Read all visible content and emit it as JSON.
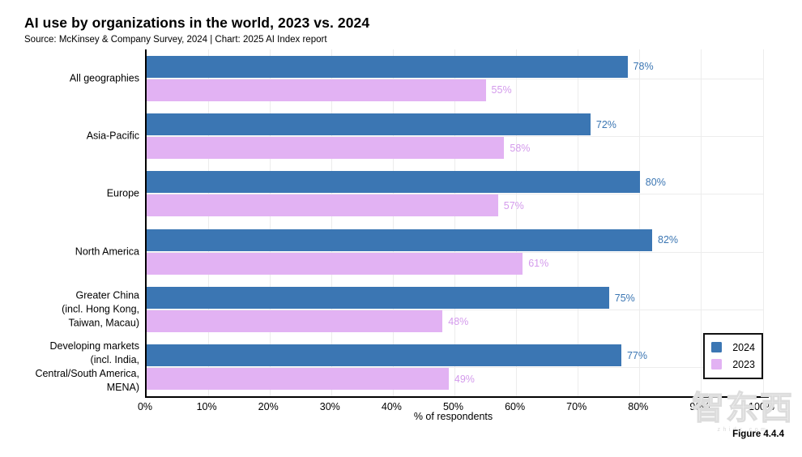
{
  "header": {
    "title": "AI use by organizations in the world, 2023 vs. 2024",
    "source_line": "Source: McKinsey & Company Survey, 2024 | Chart: 2025 AI Index report"
  },
  "colors": {
    "axis": "#000000",
    "grid": "#ececec",
    "background": "#ffffff",
    "bar_2024": "#3b76b3",
    "bar_2023": "#e2b2f3",
    "label_2024": "#3b76b3",
    "label_2023": "#d49bec"
  },
  "chart_data": {
    "type": "bar",
    "orientation": "horizontal",
    "title": "AI use by organizations in the world, 2023 vs. 2024",
    "categories": [
      [
        "All geographies"
      ],
      [
        "Asia-Pacific"
      ],
      [
        "Europe"
      ],
      [
        "North America"
      ],
      [
        "Greater China",
        "(incl. Hong Kong,",
        "Taiwan, Macau)"
      ],
      [
        "Developing markets",
        "(incl. India,",
        "Central/South America,",
        "MENA)"
      ]
    ],
    "series": [
      {
        "name": "2024",
        "bar_color": "#3b76b3",
        "label_color": "#3b76b3",
        "values": [
          78,
          72,
          80,
          82,
          75,
          77
        ]
      },
      {
        "name": "2023",
        "bar_color": "#e2b2f3",
        "label_color": "#d49bec",
        "values": [
          55,
          58,
          57,
          61,
          48,
          49
        ]
      }
    ],
    "value_suffix": "%",
    "xlabel": "% of respondents",
    "xlim": [
      0,
      100
    ],
    "x_ticks": [
      "0%",
      "10%",
      "20%",
      "30%",
      "40%",
      "50%",
      "60%",
      "70%",
      "80%",
      "90%",
      "100%"
    ],
    "grid": true,
    "legend": {
      "position": "lower right",
      "entries": [
        "2024",
        "2023"
      ]
    }
  },
  "footer": {
    "figure_label": "Figure 4.4.4",
    "watermark": "智东西",
    "watermark_sub": "zhidx.com"
  }
}
